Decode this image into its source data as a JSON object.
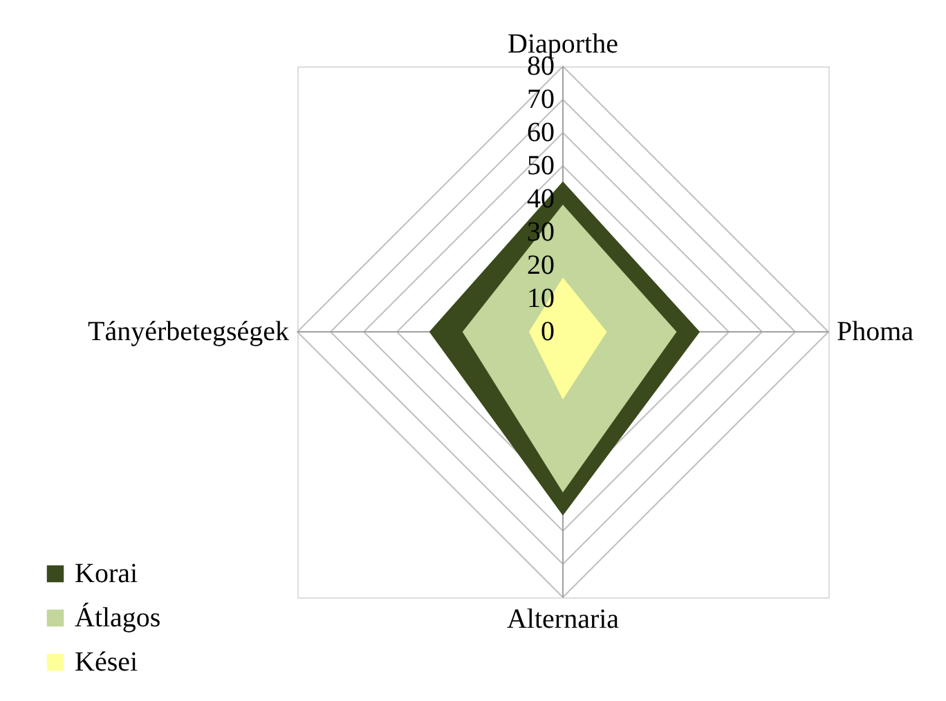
{
  "chart_data": {
    "type": "radar",
    "categories": [
      "Diaporthe",
      "Phoma",
      "Alternaria",
      "Tányérbetegségek"
    ],
    "series": [
      {
        "name": "Korai",
        "color": "#3a4a1c",
        "values": [
          45,
          41,
          55,
          40
        ]
      },
      {
        "name": "Átlagos",
        "color": "#c3d69b",
        "values": [
          38,
          34,
          48,
          30
        ]
      },
      {
        "name": "Kései",
        "color": "#ffff99",
        "values": [
          16,
          13,
          20,
          10
        ]
      }
    ],
    "ylim": [
      0,
      80
    ],
    "yticks": [
      0,
      10,
      20,
      30,
      40,
      50,
      60,
      70,
      80
    ],
    "grid": true,
    "legend": "bottom left"
  }
}
